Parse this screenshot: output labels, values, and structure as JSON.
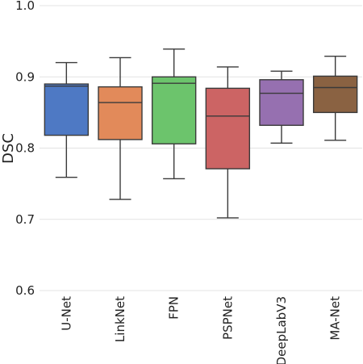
{
  "chart_data": {
    "type": "box",
    "title": "",
    "xlabel": "",
    "ylabel": "DSC",
    "ylim": [
      0.6,
      1.0
    ],
    "yticks": [
      0.6,
      0.7,
      0.8,
      0.9,
      1.0
    ],
    "ytick_labels": [
      "0.6",
      "0.7",
      "0.8",
      "0.9",
      "1.0"
    ],
    "grid": "horizontal",
    "categories": [
      "U-Net",
      "LinkNet",
      "FPN",
      "PSPNet",
      "DeepLabV3",
      "MA-Net"
    ],
    "boxes": [
      {
        "min": 0.759,
        "q1": 0.818,
        "median": 0.887,
        "q3": 0.89,
        "max": 0.92,
        "color": "#4e79c4"
      },
      {
        "min": 0.728,
        "q1": 0.812,
        "median": 0.864,
        "q3": 0.886,
        "max": 0.927,
        "color": "#e28a5a"
      },
      {
        "min": 0.757,
        "q1": 0.806,
        "median": 0.891,
        "q3": 0.9,
        "max": 0.939,
        "color": "#6cc46c"
      },
      {
        "min": 0.702,
        "q1": 0.771,
        "median": 0.845,
        "q3": 0.884,
        "max": 0.914,
        "color": "#cc6464"
      },
      {
        "min": 0.807,
        "q1": 0.832,
        "median": 0.877,
        "q3": 0.896,
        "max": 0.908,
        "color": "#9670b0"
      },
      {
        "min": 0.811,
        "q1": 0.85,
        "median": 0.885,
        "q3": 0.901,
        "max": 0.929,
        "color": "#8a6242"
      }
    ]
  }
}
